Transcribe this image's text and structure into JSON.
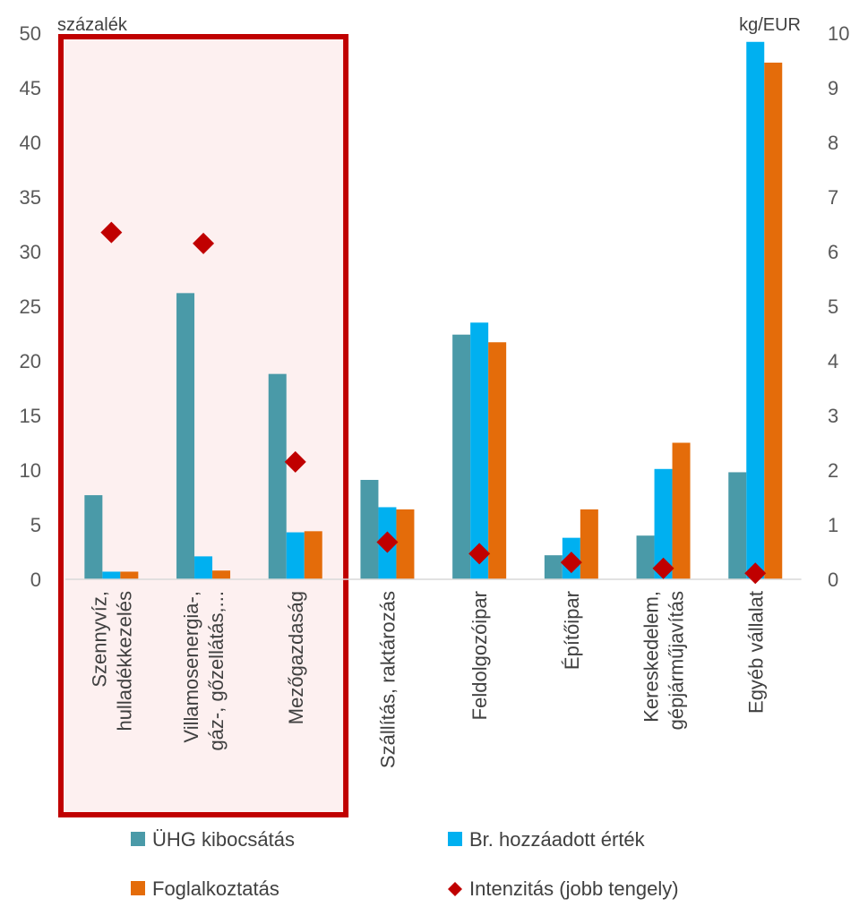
{
  "chart_data": {
    "type": "bar",
    "left_unit": "százalék",
    "right_unit": "kg/EUR",
    "ylim": [
      0,
      50
    ],
    "y2lim": [
      0,
      10
    ],
    "left_ticks": [
      "50",
      "45",
      "40",
      "35",
      "30",
      "25",
      "20",
      "15",
      "10",
      "5",
      "0"
    ],
    "right_ticks": [
      "10",
      "9",
      "8",
      "7",
      "6",
      "5",
      "4",
      "3",
      "2",
      "1",
      "0"
    ],
    "categories": [
      [
        "Szennyvíz,",
        "hulladékkezelés"
      ],
      [
        "Villamosenergia-,",
        "gáz-, gőzellátás,..."
      ],
      [
        "Mezőgazdaság"
      ],
      [
        "Szállítás, raktározás"
      ],
      [
        "Feldolgozóipar"
      ],
      [
        "Építőipar"
      ],
      [
        "Kereskedelem,",
        "gépjárműjavítás"
      ],
      [
        "Egyéb vállalat"
      ]
    ],
    "series": [
      {
        "name": "ÜHG kibocsátás",
        "color": "#4a9aa8",
        "axis": "left",
        "values": [
          7.7,
          26.2,
          18.8,
          9.1,
          22.4,
          2.2,
          4.0,
          9.8
        ]
      },
      {
        "name": "Br. hozzáadott érték",
        "color": "#00b0f0",
        "axis": "left",
        "values": [
          0.7,
          2.1,
          4.3,
          6.6,
          23.5,
          3.8,
          10.1,
          49.2
        ]
      },
      {
        "name": "Foglalkoztatás",
        "color": "#e46c0a",
        "axis": "left",
        "values": [
          0.7,
          0.8,
          4.4,
          6.4,
          21.7,
          6.4,
          12.5,
          47.3
        ]
      },
      {
        "name": "Intenzitás (jobb tengely)",
        "color": "#c00000",
        "axis": "right",
        "marker": "diamond",
        "values": [
          6.35,
          6.15,
          2.15,
          0.68,
          0.47,
          0.31,
          0.2,
          0.11
        ]
      }
    ],
    "highlight": {
      "categories": [
        0,
        1,
        2
      ],
      "border_color": "#c00000",
      "fill_color": "#fdf0f0"
    },
    "grid": false,
    "legend": "bottom"
  }
}
